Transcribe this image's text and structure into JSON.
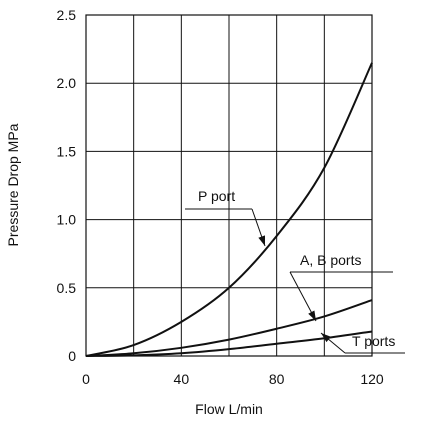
{
  "chart_data": {
    "type": "line",
    "xlabel": "Flow   L/min",
    "ylabel": "Pressure Drop   MPa",
    "xlim": [
      0,
      120
    ],
    "ylim": [
      0,
      2.5
    ],
    "x_ticks": [
      "0",
      "40",
      "80",
      "120"
    ],
    "y_ticks": [
      "0",
      "0.5",
      "1.0",
      "1.5",
      "2.0",
      "2.5"
    ],
    "grid": true,
    "x": [
      0,
      20,
      40,
      60,
      80,
      100,
      120
    ],
    "series": [
      {
        "name": "P port",
        "values": [
          0,
          0.08,
          0.25,
          0.5,
          0.88,
          1.38,
          2.15
        ]
      },
      {
        "name": "A, B ports",
        "values": [
          0,
          0.02,
          0.06,
          0.12,
          0.2,
          0.29,
          0.41
        ]
      },
      {
        "name": "T ports",
        "values": [
          0,
          0.005,
          0.02,
          0.05,
          0.09,
          0.13,
          0.18
        ]
      }
    ]
  }
}
